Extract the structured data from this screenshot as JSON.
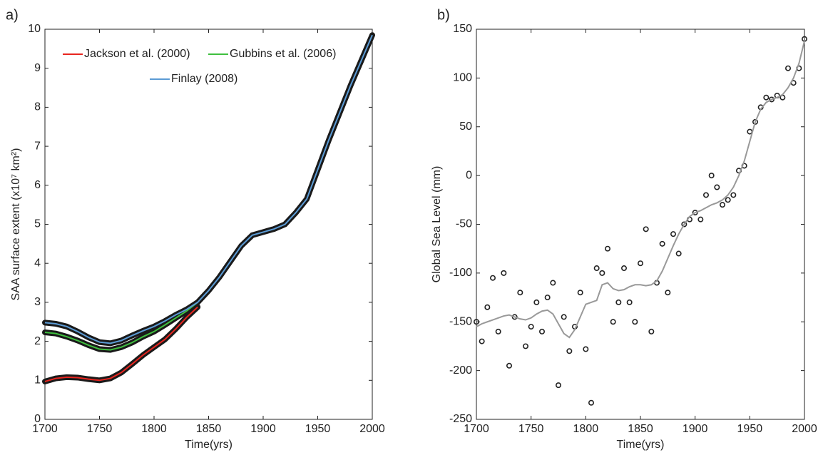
{
  "chart_data": [
    {
      "type": "line",
      "panel": "a)",
      "x_label": "Time(yrs)",
      "y_label": "SAA surface extent (x10⁷ km²)",
      "x": [
        1700,
        1710,
        1720,
        1730,
        1740,
        1750,
        1760,
        1770,
        1780,
        1790,
        1800,
        1810,
        1820,
        1830,
        1840,
        1850,
        1860,
        1870,
        1880,
        1890,
        1900,
        1910,
        1920,
        1930,
        1940,
        1950,
        1960,
        1970,
        1980,
        1990,
        2000
      ],
      "series": [
        {
          "name": "Jackson et al. (2000)",
          "color": "#e8251f",
          "values": [
            0.97,
            1.05,
            1.08,
            1.07,
            1.03,
            1.0,
            1.05,
            1.2,
            1.42,
            1.65,
            1.85,
            2.05,
            2.32,
            2.62,
            2.88,
            null,
            null,
            null,
            null,
            null,
            null,
            null,
            null,
            null,
            null,
            null,
            null,
            null,
            null,
            null,
            null
          ]
        },
        {
          "name": "Gubbins et al. (2006)",
          "color": "#3fbf3f",
          "values": [
            2.23,
            2.2,
            2.12,
            2.02,
            1.9,
            1.8,
            1.78,
            1.85,
            1.97,
            2.12,
            2.25,
            2.42,
            2.6,
            2.78,
            3.0,
            null,
            null,
            null,
            null,
            null,
            null,
            null,
            null,
            null,
            null,
            null,
            null,
            null,
            null,
            null,
            null
          ]
        },
        {
          "name": "Finlay (2008)",
          "color": "#5b9bd5",
          "values": [
            2.48,
            2.45,
            2.38,
            2.25,
            2.1,
            1.98,
            1.95,
            2.02,
            2.15,
            2.27,
            2.38,
            2.52,
            2.68,
            2.82,
            3.0,
            3.3,
            3.65,
            4.05,
            4.45,
            4.72,
            4.8,
            4.88,
            5.0,
            5.3,
            5.65,
            6.4,
            7.15,
            7.85,
            8.55,
            9.2,
            9.85
          ]
        }
      ],
      "xlim": [
        1700,
        2000
      ],
      "xticks": [
        1700,
        1750,
        1800,
        1850,
        1900,
        1950,
        2000
      ],
      "ylim": [
        0,
        10
      ],
      "yticks": [
        0,
        1,
        2,
        3,
        4,
        5,
        6,
        7,
        8,
        9,
        10
      ],
      "grid": false
    },
    {
      "type": "scatter",
      "panel": "b)",
      "x_label": "Time(yrs)",
      "y_label": "Global Sea Level (mm)",
      "x": [
        1700,
        1705,
        1710,
        1715,
        1720,
        1725,
        1730,
        1735,
        1740,
        1745,
        1750,
        1755,
        1760,
        1765,
        1770,
        1775,
        1780,
        1785,
        1790,
        1795,
        1800,
        1805,
        1810,
        1815,
        1820,
        1825,
        1830,
        1835,
        1840,
        1845,
        1850,
        1855,
        1860,
        1865,
        1870,
        1875,
        1880,
        1885,
        1890,
        1895,
        1900,
        1905,
        1910,
        1915,
        1920,
        1925,
        1930,
        1935,
        1940,
        1945,
        1950,
        1955,
        1960,
        1965,
        1970,
        1975,
        1980,
        1985,
        1990,
        1995,
        2000
      ],
      "series": [
        {
          "marker": "circle",
          "color": "#222222",
          "values": [
            -150,
            -170,
            -135,
            -105,
            -160,
            -100,
            -195,
            -145,
            -120,
            -175,
            -155,
            -130,
            -160,
            -125,
            -110,
            -215,
            -145,
            -180,
            -155,
            -120,
            -178,
            -233,
            -95,
            -100,
            -75,
            -150,
            -130,
            -95,
            -130,
            -150,
            -90,
            -55,
            -160,
            -110,
            -70,
            -120,
            -60,
            -80,
            -50,
            -45,
            -38,
            -45,
            -20,
            0,
            -12,
            -30,
            -25,
            -20,
            5,
            10,
            45,
            55,
            70,
            80,
            78,
            82,
            80,
            110,
            95,
            110,
            140
          ]
        },
        {
          "marker": "line",
          "color": "#999999",
          "values": [
            -155,
            -152,
            -150,
            -148,
            -146,
            -144,
            -143,
            -145,
            -147,
            -148,
            -146,
            -142,
            -139,
            -138,
            -142,
            -152,
            -162,
            -166,
            -158,
            -145,
            -132,
            -130,
            -128,
            -112,
            -110,
            -116,
            -118,
            -117,
            -114,
            -112,
            -112,
            -113,
            -112,
            -108,
            -98,
            -85,
            -72,
            -60,
            -50,
            -42,
            -38,
            -36,
            -33,
            -30,
            -28,
            -25,
            -20,
            -12,
            0,
            15,
            35,
            55,
            68,
            75,
            78,
            80,
            83,
            90,
            100,
            115,
            138
          ]
        }
      ],
      "xlim": [
        1700,
        2000
      ],
      "xticks": [
        1700,
        1750,
        1800,
        1850,
        1900,
        1950,
        2000
      ],
      "ylim": [
        -250,
        150
      ],
      "yticks": [
        -250,
        -200,
        -150,
        -100,
        -50,
        0,
        50,
        100,
        150
      ],
      "grid": false
    }
  ]
}
